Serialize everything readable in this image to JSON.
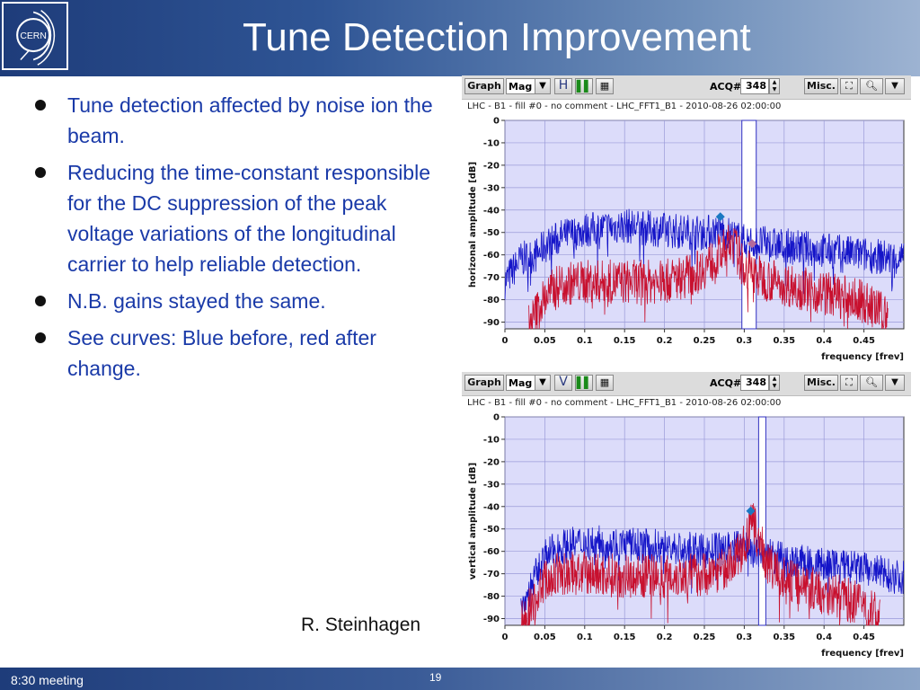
{
  "slide": {
    "title": "Tune Detection Improvement",
    "logo_text": "CERN",
    "bullets": [
      "Tune detection affected by noise ion the beam.",
      "Reducing the time-constant responsible for the DC suppression of the peak voltage variations of the longitudinal carrier to help reliable detection.",
      "N.B. gains stayed the same.",
      "See curves: Blue before, red after change."
    ],
    "author": "R. Steinhagen",
    "footer_left": "8:30 meeting",
    "page_number": "19"
  },
  "panels": [
    {
      "toolbar": {
        "graph": "Graph",
        "mode": "Mag",
        "plane_button": "H",
        "pause_icon": "pause-icon",
        "table_icon": "table-icon",
        "acq_label": "ACQ#",
        "acq_value": "348",
        "misc": "Misc.",
        "zoom_icon": "zoom-select-icon",
        "magnify_icon": "magnifier-icon"
      },
      "plot_title": "LHC - B1 - fill #0 - no comment - LHC_FFT1_B1 - 2010-08-26 02:00:00"
    },
    {
      "toolbar": {
        "graph": "Graph",
        "mode": "Mag",
        "plane_button": "V",
        "pause_icon": "pause-icon",
        "table_icon": "table-icon",
        "acq_label": "ACQ#",
        "acq_value": "348",
        "misc": "Misc.",
        "zoom_icon": "zoom-select-icon",
        "magnify_icon": "magnifier-icon"
      },
      "plot_title": "LHC - B1 - fill #0 - no comment - LHC_FFT1_B1 - 2010-08-26 02:00:00"
    }
  ],
  "chart_data": [
    {
      "type": "line",
      "title": "",
      "xlabel": "frequency [frev]",
      "ylabel": "horizonal amplitude [dB]",
      "xlim": [
        0,
        0.5
      ],
      "ylim": [
        -93,
        0
      ],
      "x_ticks": [
        0,
        0.05,
        0.1,
        0.15,
        0.2,
        0.25,
        0.3,
        0.35,
        0.4,
        0.45
      ],
      "x_tick_labels": [
        "0",
        "0.05",
        "0.1",
        "0.15",
        "0.2",
        "0.25",
        "0.3",
        "0.35",
        "0.4",
        "0.45"
      ],
      "y_ticks": [
        0,
        -10,
        -20,
        -30,
        -40,
        -50,
        -60,
        -70,
        -80,
        -90
      ],
      "y_tick_labels": [
        "0",
        "-10",
        "-20",
        "-30",
        "-40",
        "-50",
        "-60",
        "-70",
        "-80",
        "-90"
      ],
      "grid": true,
      "window": {
        "x_start": 0.297,
        "x_end": 0.315
      },
      "series": [
        {
          "color": "#1414c8",
          "x": [
            0.0,
            0.02,
            0.04,
            0.05,
            0.07,
            0.1,
            0.15,
            0.2,
            0.25,
            0.27,
            0.3,
            0.35,
            0.4,
            0.45,
            0.5
          ],
          "y": [
            -72,
            -62,
            -60,
            -56,
            -52,
            -49,
            -47,
            -49,
            -50,
            -49,
            -54,
            -56,
            -58,
            -60,
            -62
          ]
        },
        {
          "color": "#c8102e",
          "x": [
            0.03,
            0.05,
            0.07,
            0.1,
            0.15,
            0.2,
            0.24,
            0.27,
            0.285,
            0.3,
            0.32,
            0.35,
            0.4,
            0.45,
            0.48
          ],
          "y": [
            -92,
            -79,
            -73,
            -72,
            -72,
            -72,
            -68,
            -60,
            -54,
            -66,
            -70,
            -73,
            -77,
            -81,
            -88
          ]
        }
      ],
      "markers": [
        {
          "x": 0.27,
          "y": -43,
          "color": "#1a78c2"
        },
        {
          "x": 0.31,
          "y": -55,
          "color": "#b56a9a"
        }
      ]
    },
    {
      "type": "line",
      "title": "",
      "xlabel": "frequency [frev]",
      "ylabel": "vertical amplitude [dB]",
      "xlim": [
        0,
        0.5
      ],
      "ylim": [
        -93,
        0
      ],
      "x_ticks": [
        0,
        0.05,
        0.1,
        0.15,
        0.2,
        0.25,
        0.3,
        0.35,
        0.4,
        0.45
      ],
      "x_tick_labels": [
        "0",
        "0.05",
        "0.1",
        "0.15",
        "0.2",
        "0.25",
        "0.3",
        "0.35",
        "0.4",
        "0.45"
      ],
      "y_ticks": [
        0,
        -10,
        -20,
        -30,
        -40,
        -50,
        -60,
        -70,
        -80,
        -90
      ],
      "y_tick_labels": [
        "0",
        "-10",
        "-20",
        "-30",
        "-40",
        "-50",
        "-60",
        "-70",
        "-80",
        "-90"
      ],
      "grid": true,
      "window": {
        "x_start": 0.318,
        "x_end": 0.327
      },
      "series": [
        {
          "color": "#1414c8",
          "x": [
            0.02,
            0.04,
            0.05,
            0.07,
            0.1,
            0.15,
            0.2,
            0.25,
            0.3,
            0.32,
            0.35,
            0.4,
            0.45,
            0.5
          ],
          "y": [
            -86,
            -70,
            -62,
            -58,
            -56,
            -57,
            -58,
            -60,
            -58,
            -61,
            -64,
            -66,
            -68,
            -72
          ]
        },
        {
          "color": "#c8102e",
          "x": [
            0.02,
            0.04,
            0.05,
            0.07,
            0.1,
            0.15,
            0.2,
            0.25,
            0.28,
            0.3,
            0.31,
            0.33,
            0.35,
            0.4,
            0.45,
            0.47
          ],
          "y": [
            -92,
            -80,
            -73,
            -70,
            -70,
            -71,
            -71,
            -70,
            -67,
            -58,
            -47,
            -66,
            -72,
            -78,
            -84,
            -90
          ]
        }
      ],
      "markers": [
        {
          "x": 0.308,
          "y": -42,
          "color": "#1a78c2"
        },
        {
          "x": 0.27,
          "y": -65,
          "color": "#b56a9a"
        }
      ]
    }
  ],
  "colors": {
    "header_dark": "#1e3c7a",
    "bullet_text": "#1a3aa8",
    "plot_background": "#dcdcfa",
    "grid": "#9a9ad8"
  }
}
